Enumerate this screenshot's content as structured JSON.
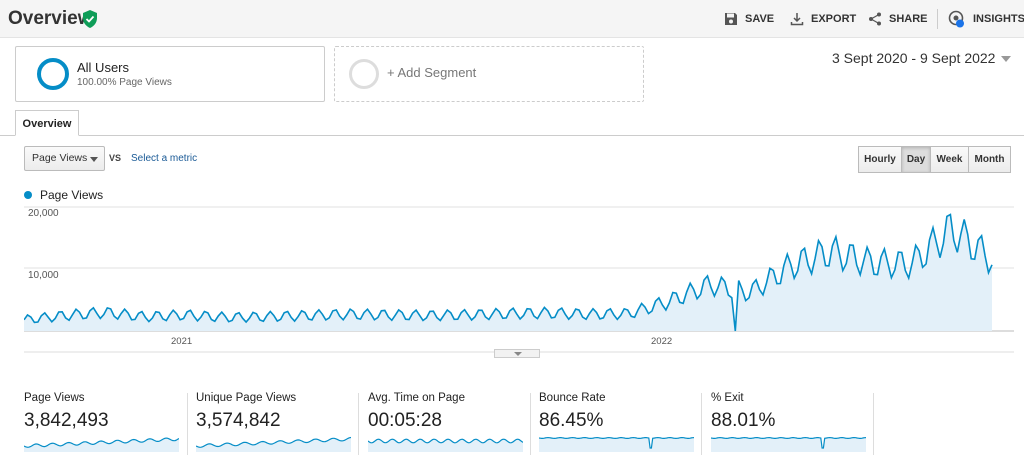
{
  "header": {
    "title": "Overview",
    "actions": [
      {
        "label": "SAVE",
        "icon": "save-icon"
      },
      {
        "label": "EXPORT",
        "icon": "export-icon"
      },
      {
        "label": "SHARE",
        "icon": "share-icon"
      },
      {
        "label": "INSIGHTS",
        "icon": "insights-icon",
        "badge": "8"
      }
    ]
  },
  "segments": {
    "active": {
      "name": "All Users",
      "sub": "100.00% Page Views"
    },
    "add_label": "+ Add Segment"
  },
  "date_range": "3 Sept 2020 - 9 Sept 2022",
  "tabs": [
    "Overview"
  ],
  "controls": {
    "metric": "Page Views",
    "vs": "VS",
    "select_metric": "Select a metric",
    "granularity": [
      "Hourly",
      "Day",
      "Week",
      "Month"
    ],
    "granularity_selected": "Day"
  },
  "colors": {
    "accent": "#058dc7",
    "fill": "#e3f0f9",
    "link": "#1a5a96"
  },
  "chart_data": {
    "type": "area",
    "series": [
      {
        "name": "Page Views"
      }
    ],
    "x_ticks": [
      "2021",
      "2022"
    ],
    "y_ticks": [
      "20,000",
      "10,000"
    ],
    "ylim": [
      0,
      20000
    ],
    "grid": true,
    "points": [
      [
        "2020-09",
        1800
      ],
      [
        "2020-10",
        2500
      ],
      [
        "2020-11",
        3000
      ],
      [
        "2020-12",
        2300
      ],
      [
        "2021-01",
        2600
      ],
      [
        "2021-02",
        2200
      ],
      [
        "2021-03",
        2300
      ],
      [
        "2021-04",
        2500
      ],
      [
        "2021-05",
        2700
      ],
      [
        "2021-06",
        2600
      ],
      [
        "2021-07",
        2500
      ],
      [
        "2021-08",
        2600
      ],
      [
        "2021-09",
        2800
      ],
      [
        "2021-10",
        2900
      ],
      [
        "2021-11",
        2700
      ],
      [
        "2021-12",
        2800
      ],
      [
        "2022-01",
        4800
      ],
      [
        "2022-02",
        7500
      ],
      [
        "2022-03",
        6200
      ],
      [
        "2022-04",
        10500
      ],
      [
        "2022-05",
        12800
      ],
      [
        "2022-06",
        11000
      ],
      [
        "2022-07",
        10800
      ],
      [
        "2022-08",
        16500
      ],
      [
        "2022-09",
        11500
      ]
    ]
  },
  "stats": [
    {
      "label": "Page Views",
      "value": "3,842,493"
    },
    {
      "label": "Unique Page Views",
      "value": "3,574,842"
    },
    {
      "label": "Avg. Time on Page",
      "value": "00:05:28"
    },
    {
      "label": "Bounce Rate",
      "value": "86.45%"
    },
    {
      "label": "% Exit",
      "value": "88.01%"
    }
  ]
}
